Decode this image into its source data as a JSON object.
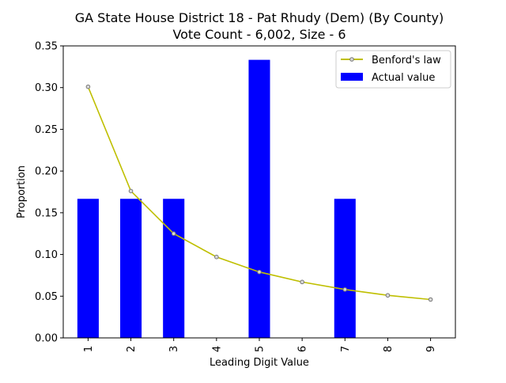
{
  "chart_data": {
    "type": "bar",
    "title": "GA State House District 18 - Pat Rhudy (Dem) (By County)",
    "subtitle": "Vote Count - 6,002, Size - 6",
    "xlabel": "Leading Digit Value",
    "ylabel": "Proportion",
    "categories": [
      "1",
      "2",
      "3",
      "4",
      "5",
      "6",
      "7",
      "8",
      "9"
    ],
    "ylim": [
      0,
      0.35
    ],
    "yticks": [
      "0.00",
      "0.05",
      "0.10",
      "0.15",
      "0.20",
      "0.25",
      "0.30",
      "0.35"
    ],
    "grid": false,
    "legend_position": "top-right",
    "series": [
      {
        "name": "Actual value",
        "kind": "bar",
        "color": "#0000ff",
        "values": [
          0.1667,
          0.1667,
          0.1667,
          0,
          0.3333,
          0,
          0.1667,
          0,
          0
        ]
      },
      {
        "name": "Benford's law",
        "kind": "line",
        "color": "#bfbf00",
        "marker": "circle",
        "values": [
          0.301,
          0.176,
          0.125,
          0.097,
          0.079,
          0.067,
          0.058,
          0.051,
          0.046
        ]
      }
    ]
  }
}
